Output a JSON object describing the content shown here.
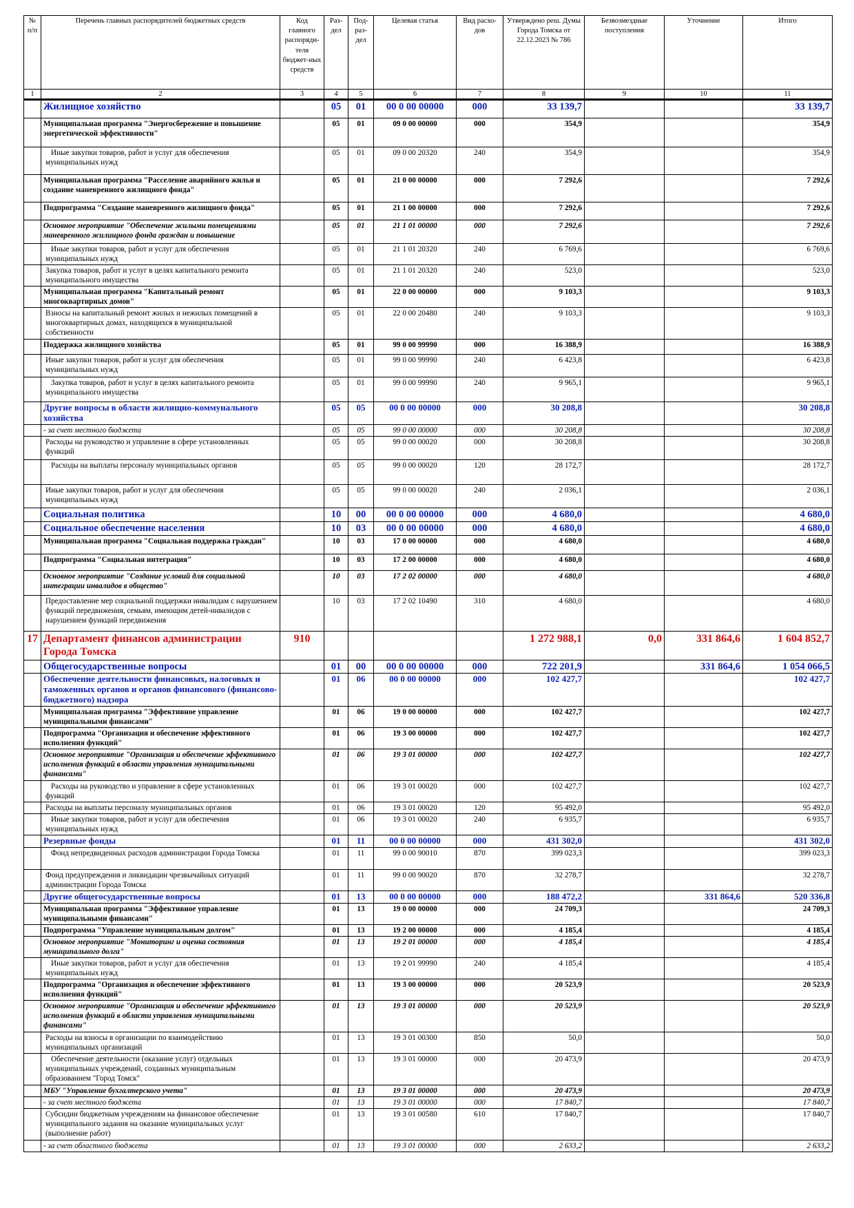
{
  "headers": [
    "№ п/п",
    "Перечень главных распорядителей бюджетных средств",
    "Код главного распоряди-теля бюджет-ных средств",
    "Раз-дел",
    "Под-раз-дел",
    "Целевая статья",
    "Вид расхо-дов",
    "Утверждено реш. Думы Города Томска от 22.12.2023 № 786",
    "Безвозмездные поступления",
    "Уточнение",
    "Итого"
  ],
  "col_numbers": [
    "1",
    "2",
    "3",
    "4",
    "5",
    "6",
    "7",
    "8",
    "9",
    "10",
    "11"
  ],
  "rows": [
    {
      "s": "sec",
      "h": 27,
      "c": [
        "",
        "Жилищное хозяйство",
        "",
        "05",
        "01",
        "00 0 00 00000",
        "000",
        "33 139,7",
        "",
        "",
        "33 139,7"
      ]
    },
    {
      "s": "b",
      "h": 42,
      "c": [
        "",
        "Муниципальная программа \"Энергосбережение и повышение энергетической эффективности\"",
        "",
        "05",
        "01",
        "09 0 00 00000",
        "000",
        "354,9",
        "",
        "",
        "354,9"
      ]
    },
    {
      "s": "n",
      "h": 40,
      "c": [
        "",
        "Иные закупки товаров, работ и услуг для обеспечения муниципальных нужд",
        "",
        "05",
        "01",
        "09 0 00 20320",
        "240",
        "354,9",
        "",
        "",
        "354,9"
      ]
    },
    {
      "s": "b",
      "h": 40,
      "c": [
        "",
        "Муниципальная программа \"Расселение аварийного жилья и создание маневренного жилищного фонда\"",
        "",
        "05",
        "01",
        "21 0 00 00000",
        "000",
        "7 292,6",
        "",
        "",
        "7 292,6"
      ]
    },
    {
      "s": "b",
      "h": 26,
      "c": [
        "",
        "Подпрограмма \"Создание маневренного жилищного фонда\"",
        "",
        "05",
        "01",
        "21 1 00 00000",
        "000",
        "7 292,6",
        "",
        "",
        "7 292,6"
      ]
    },
    {
      "s": "bi",
      "h": 34,
      "c": [
        "",
        "Основное мероприятие \"Обеспечение жилыми помещениями маневренного жилищного фонда граждан и повышение",
        "",
        "05",
        "01",
        "21 1 01 00000",
        "000",
        "7 292,6",
        "",
        "",
        "7 292,6"
      ]
    },
    {
      "s": "n",
      "h": 24,
      "c": [
        "",
        "Иные закупки товаров, работ и услуг для обеспечения муниципальных нужд",
        "",
        "05",
        "01",
        "21 1 01 20320",
        "240",
        "6 769,6",
        "",
        "",
        "6 769,6"
      ]
    },
    {
      "s": "n",
      "h": 24,
      "c": [
        "",
        "Закупка товаров, работ и услуг в целях капитального ремонта муниципального имущества",
        "",
        "05",
        "01",
        "21 1 01 20320",
        "240",
        "523,0",
        "",
        "",
        "523,0"
      ]
    },
    {
      "s": "b",
      "h": 24,
      "c": [
        "",
        "Муниципальная программа \"Капитальный ремонт многоквартирных домов\"",
        "",
        "05",
        "01",
        "22 0 00 00000",
        "000",
        "9 103,3",
        "",
        "",
        "9 103,3"
      ]
    },
    {
      "s": "n",
      "h": 46,
      "c": [
        "",
        "Взносы на капитальный ремонт жилых и нежилых помещений в многоквартирных домах, находящихся в муниципальной собственности",
        "",
        "05",
        "01",
        "22 0 00 20480",
        "240",
        "9 103,3",
        "",
        "",
        "9 103,3"
      ]
    },
    {
      "s": "b",
      "h": 22,
      "c": [
        "",
        "Поддержка жилищного хозяйства",
        "",
        "05",
        "01",
        "99 0 00 99990",
        "000",
        "16 388,9",
        "",
        "",
        "16 388,9"
      ]
    },
    {
      "s": "n",
      "h": 33,
      "c": [
        "",
        "Иные закупки товаров, работ и услуг для обеспечения муниципальных нужд",
        "",
        "05",
        "01",
        "99 0 00 99990",
        "240",
        "6 423,8",
        "",
        "",
        "6 423,8"
      ]
    },
    {
      "s": "n",
      "h": 36,
      "c": [
        "",
        "Закупка товаров, работ и услуг в целях капитального ремонта муниципального имущества",
        "",
        "05",
        "01",
        "99 0 00 99990",
        "240",
        "9 965,1",
        "",
        "",
        "9 965,1"
      ]
    },
    {
      "s": "sub",
      "h": 32,
      "c": [
        "",
        "Другие вопросы в области жилищно-коммунального хозяйства",
        "",
        "05",
        "05",
        "00 0 00 00000",
        "000",
        "30 208,8",
        "",
        "",
        "30 208,8"
      ]
    },
    {
      "s": "i",
      "h": 15,
      "c": [
        "",
        "- за счет местного бюджета",
        "",
        "05",
        "05",
        "99 0 00 00000",
        "000",
        "30 208,8",
        "",
        "",
        "30 208,8"
      ]
    },
    {
      "s": "n",
      "h": 34,
      "c": [
        "",
        "Расходы на руководство и управление в сфере установленных функций",
        "",
        "05",
        "05",
        "99 0 00 00020",
        "000",
        "30 208,8",
        "",
        "",
        "30 208,8"
      ]
    },
    {
      "s": "n",
      "h": 36,
      "c": [
        "",
        "Расходы на выплаты персоналу муниципальных органов",
        "",
        "05",
        "05",
        "99 0 00 00020",
        "120",
        "28 172,7",
        "",
        "",
        "28 172,7"
      ]
    },
    {
      "s": "n",
      "h": 34,
      "c": [
        "",
        "Иные закупки товаров, работ и услуг для обеспечения муниципальных нужд",
        "",
        "05",
        "05",
        "99 0 00 00020",
        "240",
        "2 036,1",
        "",
        "",
        "2 036,1"
      ]
    },
    {
      "s": "sec",
      "h": 16,
      "c": [
        "",
        "Социальная политика",
        "",
        "10",
        "00",
        "00 0 00 00000",
        "000",
        "4 680,0",
        "",
        "",
        "4 680,0"
      ]
    },
    {
      "s": "sec",
      "h": 20,
      "c": [
        "",
        "Социальное обеспечение населения",
        "",
        "10",
        "03",
        "00 0 00 00000",
        "000",
        "4 680,0",
        "",
        "",
        "4 680,0"
      ]
    },
    {
      "s": "b",
      "h": 27,
      "c": [
        "",
        "Муниципальная программа \"Социальная поддержка граждан\"",
        "",
        "10",
        "03",
        "17 0 00 00000",
        "000",
        "4 680,0",
        "",
        "",
        "4 680,0"
      ]
    },
    {
      "s": "b",
      "h": 24,
      "c": [
        "",
        "Подпрограмма \"Социальная интеграция\"",
        "",
        "10",
        "03",
        "17 2 00 00000",
        "000",
        "4 680,0",
        "",
        "",
        "4 680,0"
      ]
    },
    {
      "s": "bi",
      "h": 36,
      "c": [
        "",
        "Основное мероприятие \"Создание условий для социальной интеграции инвалидов в общество\"",
        "",
        "10",
        "03",
        "17 2 02 00000",
        "000",
        "4 680,0",
        "",
        "",
        "4 680,0"
      ]
    },
    {
      "s": "n",
      "h": 52,
      "c": [
        "",
        "Предоставление мер социальной поддержки инвалидам с нарушением функций передвижения, семьям, имеющим детей-инвалидов с нарушением функций передвижения",
        "",
        "10",
        "03",
        "17 2 02 10490",
        "310",
        "4 680,0",
        "",
        "",
        "4 680,0"
      ]
    },
    {
      "s": "dept",
      "h": 42,
      "c": [
        "17",
        "Департамент финансов администрации Города Томска",
        "910",
        "",
        "",
        "",
        "",
        "1 272 988,1",
        "0,0",
        "331 864,6",
        "1 604 852,7"
      ]
    },
    {
      "s": "sec",
      "h": 18,
      "c": [
        "",
        "Общегосударственные вопросы",
        "",
        "01",
        "00",
        "00 0 00 00000",
        "000",
        "722 201,9",
        "",
        "331 864,6",
        "1 054 066,5"
      ]
    },
    {
      "s": "sub",
      "h": 48,
      "c": [
        "",
        "Обеспечение деятельности финансовых, налоговых и таможенных органов и органов финансового (финансово-бюджетного) надзора",
        "",
        "01",
        "06",
        "00 0 00 00000",
        "000",
        "102 427,7",
        "",
        "",
        "102 427,7"
      ]
    },
    {
      "s": "b",
      "h": 30,
      "c": [
        "",
        "Муниципальная программа \"Эффективное управление муниципальными финансами\"",
        "",
        "01",
        "06",
        "19 0 00 00000",
        "000",
        "102 427,7",
        "",
        "",
        "102 427,7"
      ]
    },
    {
      "s": "b",
      "h": 30,
      "c": [
        "",
        "Подпрограмма \"Организация и обеспечение эффективного исполнения функций\"",
        "",
        "01",
        "06",
        "19 3 00 00000",
        "000",
        "102 427,7",
        "",
        "",
        "102 427,7"
      ]
    },
    {
      "s": "bi",
      "h": 46,
      "c": [
        "",
        "Основное мероприятие \"Организация и обеспечение эффективного исполнения функций в области управления муниципальными финансами\"",
        "",
        "01",
        "06",
        "19 3 01 00000",
        "000",
        "102 427,7",
        "",
        "",
        "102 427,7"
      ]
    },
    {
      "s": "n",
      "h": 30,
      "c": [
        "",
        "Расходы на руководство и управление в сфере установленных функций",
        "",
        "01",
        "06",
        "19 3 01 00020",
        "000",
        "102 427,7",
        "",
        "",
        "102 427,7"
      ]
    },
    {
      "s": "n",
      "h": 15,
      "c": [
        "",
        "Расходы на выплаты персоналу муниципальных органов",
        "",
        "01",
        "06",
        "19 3 01 00020",
        "120",
        "95 492,0",
        "",
        "",
        "95 492,0"
      ]
    },
    {
      "s": "n",
      "h": 24,
      "c": [
        "",
        "Иные закупки товаров, работ и услуг для обеспечения муниципальных нужд",
        "",
        "01",
        "06",
        "19 3 01 00020",
        "240",
        "6 935,7",
        "",
        "",
        "6 935,7"
      ]
    },
    {
      "s": "sub",
      "h": 16,
      "c": [
        "",
        "Резервные фонды",
        "",
        "01",
        "11",
        "00 0 00 00000",
        "000",
        "431 302,0",
        "",
        "",
        "431 302,0"
      ]
    },
    {
      "s": "n",
      "h": 32,
      "c": [
        "",
        "Фонд непредвиденных расходов администрации Города Томска",
        "",
        "01",
        "11",
        "99 0 00 90010",
        "870",
        "399 023,3",
        "",
        "",
        "399 023,3"
      ]
    },
    {
      "s": "n",
      "h": 30,
      "c": [
        "",
        "Фонд предупреждения и ликвидации чрезвычайных ситуаций администрации Города Томска",
        "",
        "01",
        "11",
        "99 0 00 90020",
        "870",
        "32 278,7",
        "",
        "",
        "32 278,7"
      ]
    },
    {
      "s": "sub",
      "h": 16,
      "c": [
        "",
        "Другие общегосударственные вопросы",
        "",
        "01",
        "13",
        "00 0 00 00000",
        "000",
        "188 472,2",
        "",
        "331 864,6",
        "520 336,8"
      ]
    },
    {
      "s": "b",
      "h": 30,
      "c": [
        "",
        "Муниципальная программа \"Эффективное управление муниципальными финансами\"",
        "",
        "01",
        "13",
        "19 0 00 00000",
        "000",
        "24 709,3",
        "",
        "",
        "24 709,3"
      ]
    },
    {
      "s": "b",
      "h": 16,
      "c": [
        "",
        "Подпрограмма \"Управление муниципальным долгом\"",
        "",
        "01",
        "13",
        "19 2 00 00000",
        "000",
        "4 185,4",
        "",
        "",
        "4 185,4"
      ]
    },
    {
      "s": "bi",
      "h": 30,
      "c": [
        "",
        "Основное мероприятие \"Мониторинг и оценка состояния муниципального долга\"",
        "",
        "01",
        "13",
        "19 2 01 00000",
        "000",
        "4 185,4",
        "",
        "",
        "4 185,4"
      ]
    },
    {
      "s": "n",
      "h": 30,
      "c": [
        "",
        "Иные закупки товаров, работ и услуг для обеспечения муниципальных нужд",
        "",
        "01",
        "13",
        "19 2 01 99990",
        "240",
        "4 185,4",
        "",
        "",
        "4 185,4"
      ]
    },
    {
      "s": "b",
      "h": 30,
      "c": [
        "",
        "Подпрограмма \"Организация и обеспечение эффективного исполнения функций\"",
        "",
        "01",
        "13",
        "19 3 00 00000",
        "000",
        "20 523,9",
        "",
        "",
        "20 523,9"
      ]
    },
    {
      "s": "bi",
      "h": 46,
      "c": [
        "",
        "Основное мероприятие \"Организация и обеспечение эффективного исполнения функций в области управления муниципальными финансами\"",
        "",
        "01",
        "13",
        "19 3 01 00000",
        "000",
        "20 523,9",
        "",
        "",
        "20 523,9"
      ]
    },
    {
      "s": "n",
      "h": 30,
      "c": [
        "",
        "Расходы на взносы в организации по взаимодействию муниципальных организаций",
        "",
        "01",
        "13",
        "19 3 01 00300",
        "850",
        "50,0",
        "",
        "",
        "50,0"
      ]
    },
    {
      "s": "n",
      "h": 46,
      "c": [
        "",
        "Обеспечение деятельности (оказание услуг) отдельных муниципальных учреждений, созданных муниципальным образованием \"Город Томск\"",
        "",
        "01",
        "13",
        "19 3 01 00000",
        "000",
        "20 473,9",
        "",
        "",
        "20 473,9"
      ]
    },
    {
      "s": "bi2",
      "h": 16,
      "c": [
        "",
        "МБУ \"Управление бухгалтерского учета\"",
        "",
        "01",
        "13",
        "19 3 01 00000",
        "000",
        "20 473,9",
        "",
        "",
        "20 473,9"
      ]
    },
    {
      "s": "i",
      "h": 15,
      "c": [
        "",
        "- за счет местного бюджета",
        "",
        "01",
        "13",
        "19 3 01 00000",
        "000",
        "17 840,7",
        "",
        "",
        "17 840,7"
      ]
    },
    {
      "s": "n",
      "h": 46,
      "c": [
        "",
        "Субсидии бюджетным учреждениям на финансовое обеспечение муниципального задания на оказание муниципальных услуг (выполнение работ)",
        "",
        "01",
        "13",
        "19 3 01 00580",
        "610",
        "17 840,7",
        "",
        "",
        "17 840,7"
      ]
    },
    {
      "s": "i",
      "h": 14,
      "c": [
        "",
        "- за счет областного бюджета",
        "",
        "01",
        "13",
        "19 3 01 00000",
        "000",
        "2 633,2",
        "",
        "",
        "2 633,2"
      ]
    }
  ]
}
